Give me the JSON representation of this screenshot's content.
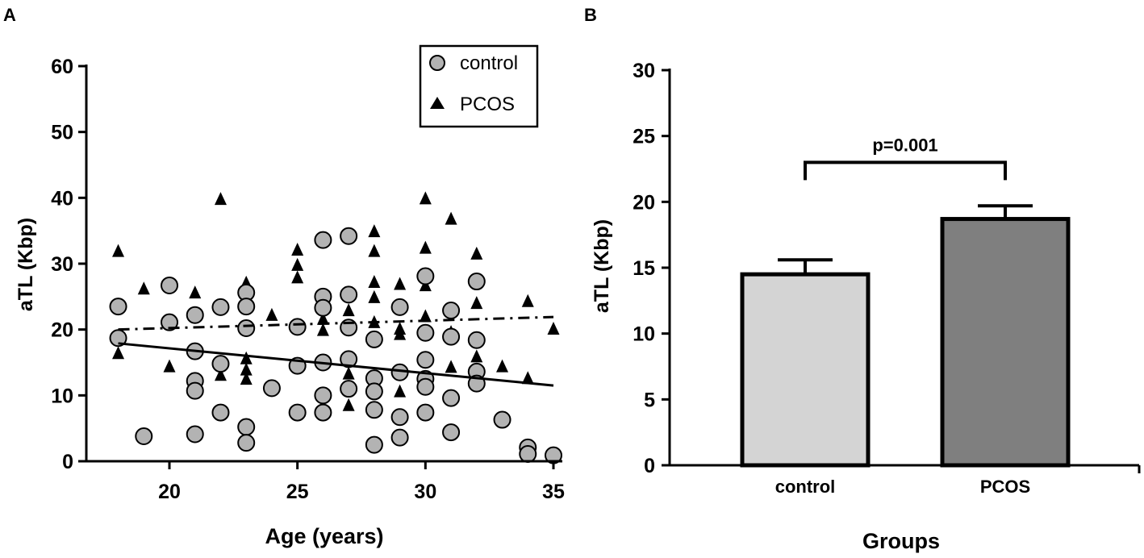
{
  "chart_data": [
    {
      "panel": "A",
      "type": "scatter",
      "xlabel": "Age (years)",
      "ylabel": "aTL (Kbp)",
      "xlim": [
        17,
        35.3
      ],
      "ylim": [
        0,
        60
      ],
      "xticks": [
        20,
        25,
        30,
        35
      ],
      "yticks": [
        0,
        10,
        20,
        30,
        40,
        50,
        60
      ],
      "grid": false,
      "legend": {
        "position": "top-right",
        "entries": [
          {
            "label": "control",
            "marker": "circle"
          },
          {
            "label": "PCOS",
            "marker": "triangle"
          }
        ]
      },
      "series": [
        {
          "name": "control",
          "marker": "circle",
          "color": "#b3b3b3",
          "points": [
            [
              18,
              23.5
            ],
            [
              18,
              18.7
            ],
            [
              19,
              3.8
            ],
            [
              20,
              26.7
            ],
            [
              20,
              21.1
            ],
            [
              21,
              22.2
            ],
            [
              21,
              16.7
            ],
            [
              21,
              12.2
            ],
            [
              21,
              10.7
            ],
            [
              21,
              4.1
            ],
            [
              22,
              23.4
            ],
            [
              22,
              14.8
            ],
            [
              22,
              7.4
            ],
            [
              23,
              25.6
            ],
            [
              23,
              23.5
            ],
            [
              23,
              20.2
            ],
            [
              23,
              5.2
            ],
            [
              23,
              2.8
            ],
            [
              24,
              11.1
            ],
            [
              25,
              20.4
            ],
            [
              25,
              14.5
            ],
            [
              25,
              7.4
            ],
            [
              26,
              33.6
            ],
            [
              26,
              25.0
            ],
            [
              26,
              23.3
            ],
            [
              26,
              15.0
            ],
            [
              26,
              10.0
            ],
            [
              26,
              7.4
            ],
            [
              27,
              34.2
            ],
            [
              27,
              25.3
            ],
            [
              27,
              20.3
            ],
            [
              27,
              15.5
            ],
            [
              27,
              11.0
            ],
            [
              28,
              18.5
            ],
            [
              28,
              12.6
            ],
            [
              28,
              10.6
            ],
            [
              28,
              7.8
            ],
            [
              28,
              2.5
            ],
            [
              29,
              23.4
            ],
            [
              29,
              13.5
            ],
            [
              29,
              6.7
            ],
            [
              29,
              3.6
            ],
            [
              30,
              28.1
            ],
            [
              30,
              19.5
            ],
            [
              30,
              15.4
            ],
            [
              30,
              12.5
            ],
            [
              30,
              11.3
            ],
            [
              30,
              7.4
            ],
            [
              31,
              22.9
            ],
            [
              31,
              18.9
            ],
            [
              31,
              9.6
            ],
            [
              31,
              4.4
            ],
            [
              32,
              27.3
            ],
            [
              32,
              18.4
            ],
            [
              32,
              13.6
            ],
            [
              32,
              11.8
            ],
            [
              33,
              6.3
            ],
            [
              34,
              2.1
            ],
            [
              34,
              1.1
            ],
            [
              35,
              0.9
            ]
          ]
        },
        {
          "name": "PCOS",
          "marker": "triangle",
          "color": "#000000",
          "points": [
            [
              18,
              32.0
            ],
            [
              18,
              16.5
            ],
            [
              19,
              26.3
            ],
            [
              20,
              14.5
            ],
            [
              21,
              25.7
            ],
            [
              21,
              17.0
            ],
            [
              22,
              39.9
            ],
            [
              22,
              13.2
            ],
            [
              23,
              27.2
            ],
            [
              23,
              15.7
            ],
            [
              23,
              14.0
            ],
            [
              23,
              12.6
            ],
            [
              24,
              22.3
            ],
            [
              25,
              32.2
            ],
            [
              25,
              29.9
            ],
            [
              25,
              28.0
            ],
            [
              26,
              21.7
            ],
            [
              26,
              20.0
            ],
            [
              27,
              23.0
            ],
            [
              27,
              13.4
            ],
            [
              27,
              8.6
            ],
            [
              28,
              35.0
            ],
            [
              28,
              32.0
            ],
            [
              28,
              27.3
            ],
            [
              28,
              25.0
            ],
            [
              28,
              21.2
            ],
            [
              29,
              27.0
            ],
            [
              29,
              20.2
            ],
            [
              29,
              19.4
            ],
            [
              29,
              10.7
            ],
            [
              30,
              40.0
            ],
            [
              30,
              32.5
            ],
            [
              30,
              26.8
            ],
            [
              30,
              22.1
            ],
            [
              31,
              36.9
            ],
            [
              31,
              19.7
            ],
            [
              31,
              14.4
            ],
            [
              32,
              31.6
            ],
            [
              32,
              24.1
            ],
            [
              32,
              16.0
            ],
            [
              33,
              14.5
            ],
            [
              34,
              24.4
            ],
            [
              34,
              12.7
            ],
            [
              35,
              20.2
            ]
          ]
        }
      ],
      "trendlines": [
        {
          "series": "control",
          "style": "solid",
          "x": [
            18,
            35
          ],
          "y": [
            17.9,
            11.5
          ]
        },
        {
          "series": "PCOS",
          "style": "dash-dot",
          "x": [
            18,
            35
          ],
          "y": [
            20.0,
            21.9
          ]
        }
      ]
    },
    {
      "panel": "B",
      "type": "bar",
      "xlabel": "Groups",
      "ylabel": "aTL (Kbp)",
      "ylim": [
        0,
        30
      ],
      "yticks": [
        0,
        5,
        10,
        15,
        20,
        25,
        30
      ],
      "categories": [
        "control",
        "PCOS"
      ],
      "values": [
        14.5,
        18.7
      ],
      "errors": [
        1.1,
        1.0
      ],
      "bar_colors": [
        "#d4d4d4",
        "#7f7f7f"
      ],
      "annotation": {
        "text": "p=0.001",
        "between": [
          "control",
          "PCOS"
        ],
        "y": 23.0
      }
    }
  ]
}
